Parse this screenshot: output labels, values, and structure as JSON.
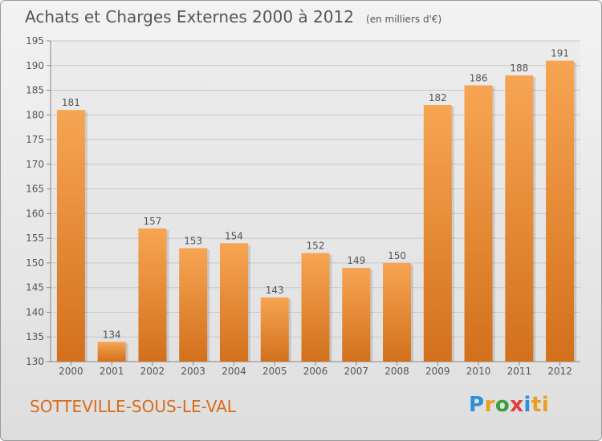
{
  "header": {
    "title": "Achats et Charges Externes 2000 à 2012",
    "unit": "(en milliers d'€)"
  },
  "footer": {
    "city": "SOTTEVILLE-SOUS-LE-VAL",
    "brand": "Proxiti",
    "brand_letters": [
      "P",
      "r",
      "o",
      "x",
      "i",
      "ti"
    ]
  },
  "colors": {
    "bar_top": "#f7a553",
    "bar_bottom": "#d2701c",
    "accent": "#d86a1a",
    "grid": "#c8c8c8",
    "text": "#555555"
  },
  "chart_data": {
    "type": "bar",
    "categories": [
      "2000",
      "2001",
      "2002",
      "2003",
      "2004",
      "2005",
      "2006",
      "2007",
      "2008",
      "2009",
      "2010",
      "2011",
      "2012"
    ],
    "values": [
      181,
      134,
      157,
      153,
      154,
      143,
      152,
      149,
      150,
      182,
      186,
      188,
      191
    ],
    "data_labels": [
      "181",
      "134",
      "157",
      "153",
      "154",
      "143",
      "152",
      "149",
      "150",
      "182",
      "186",
      "188",
      "191"
    ],
    "ylim": [
      130,
      195
    ],
    "yticks": [
      130,
      135,
      140,
      145,
      150,
      155,
      160,
      165,
      170,
      175,
      180,
      185,
      190,
      195
    ],
    "ytick_labels": [
      "130",
      "135",
      "140",
      "145",
      "150",
      "155",
      "160",
      "165",
      "170",
      "175",
      "180",
      "185",
      "190",
      "195"
    ],
    "grid": true,
    "title": "Achats et Charges Externes 2000 à 2012",
    "xlabel": "",
    "ylabel": ""
  }
}
